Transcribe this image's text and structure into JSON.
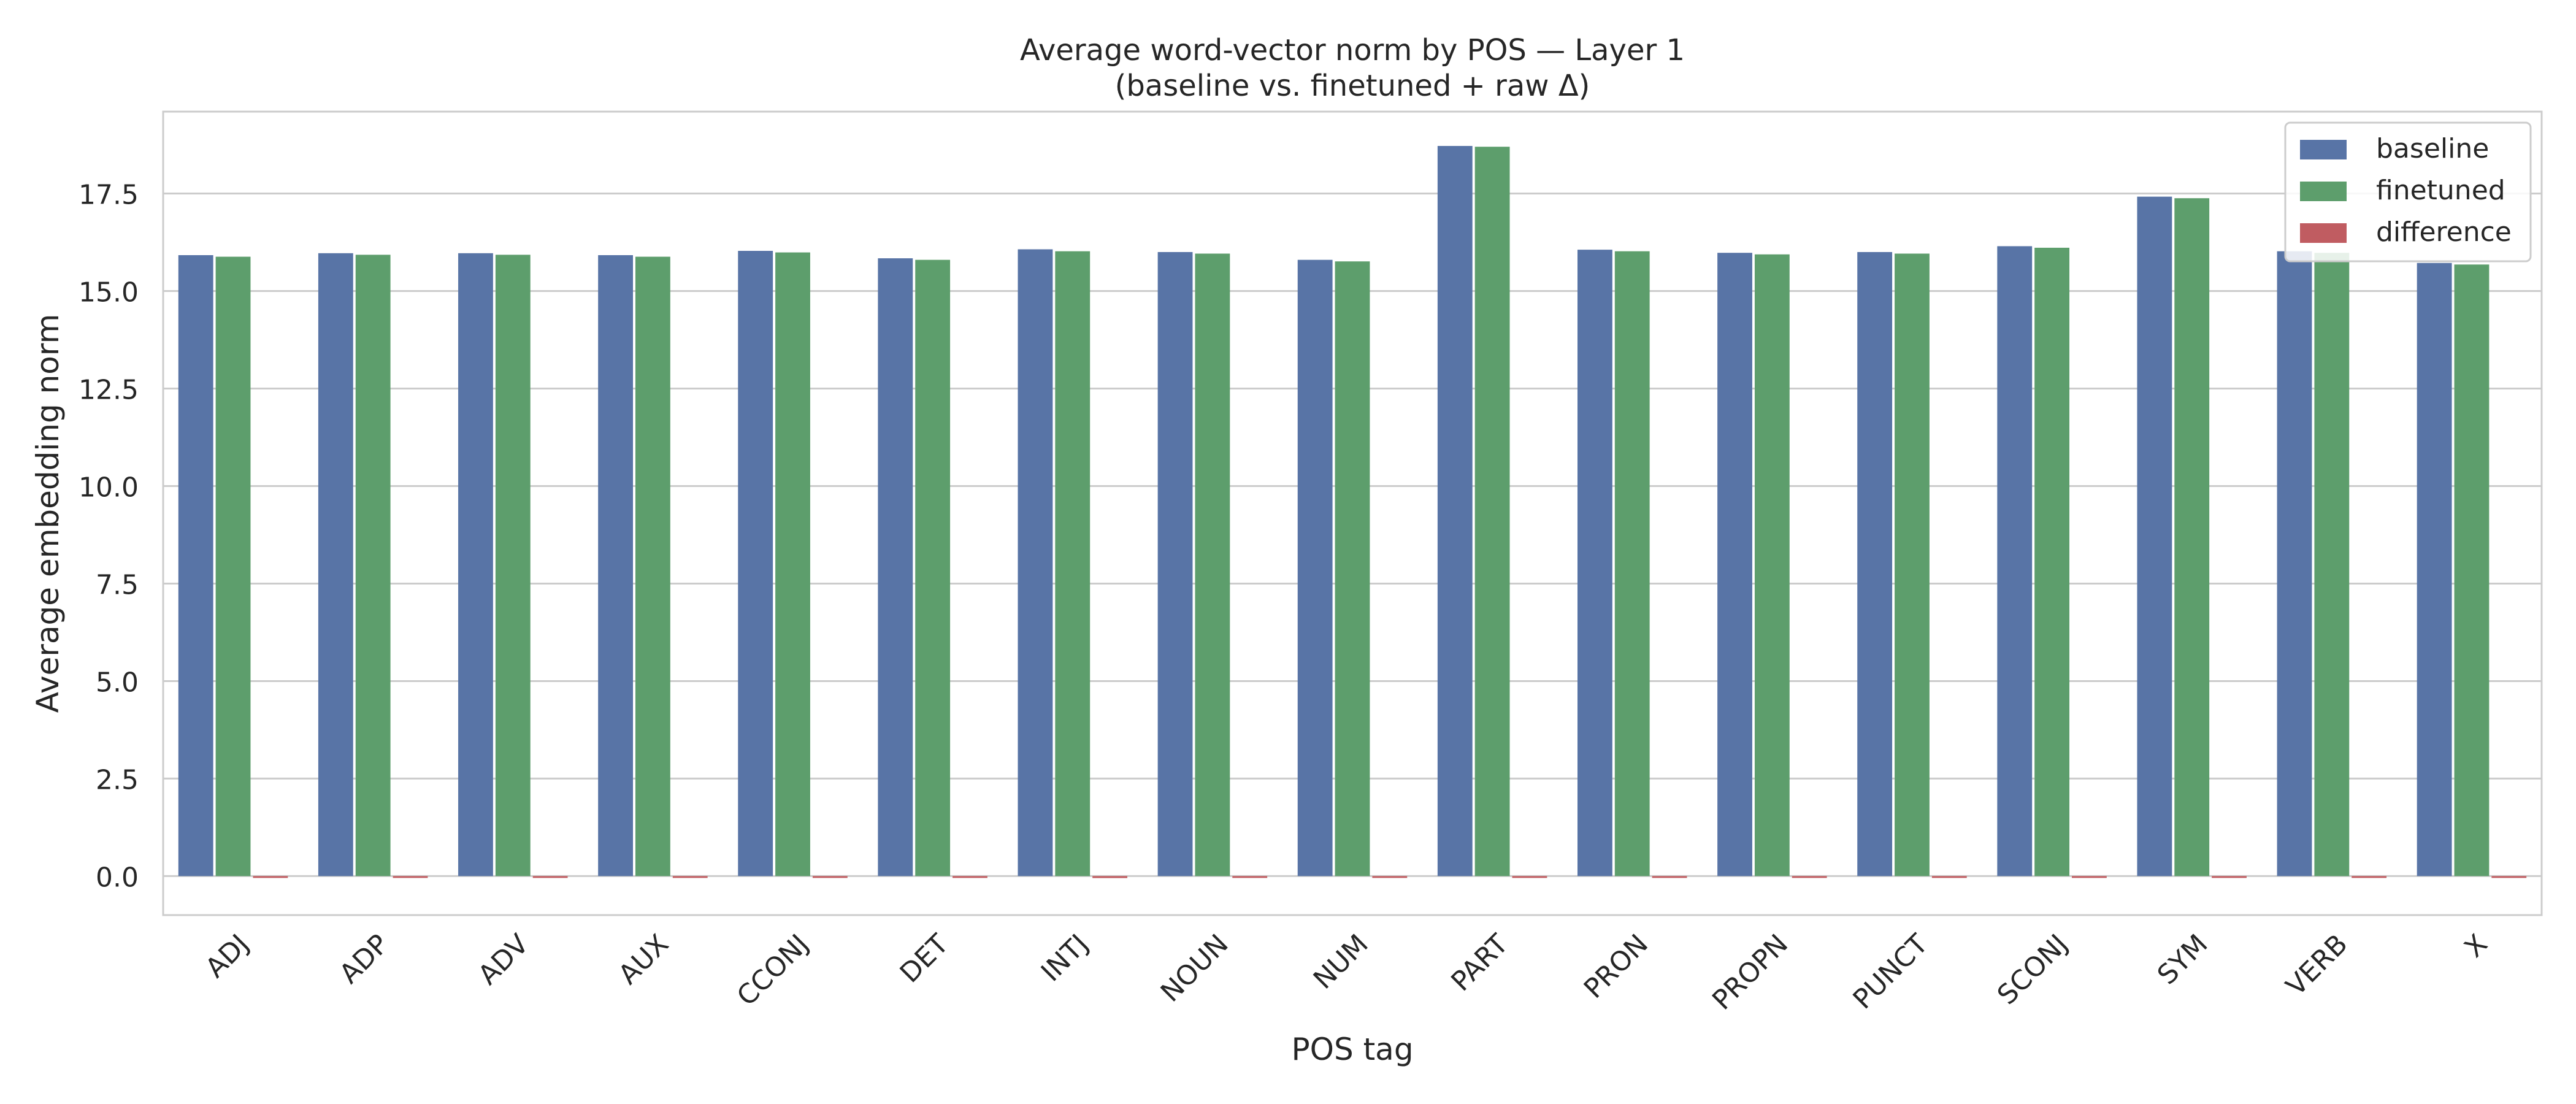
{
  "chart_data": {
    "type": "bar",
    "title": "Average word-vector norm by POS — Layer 1",
    "subtitle": "(baseline vs. finetuned + raw Δ)",
    "xlabel": "POS tag",
    "ylabel": "Average embedding norm",
    "ylim": [
      -1.0,
      19.6
    ],
    "yticks": [
      "0.0",
      "2.5",
      "5.0",
      "7.5",
      "10.0",
      "12.5",
      "15.0",
      "17.5"
    ],
    "grid": true,
    "legend_position": "top-right",
    "categories": [
      "ADJ",
      "ADP",
      "ADV",
      "AUX",
      "CCONJ",
      "DET",
      "INTJ",
      "NOUN",
      "NUM",
      "PART",
      "PRON",
      "PROPN",
      "PUNCT",
      "SCONJ",
      "SYM",
      "VERB",
      "X"
    ],
    "series": [
      {
        "name": "baseline",
        "color": "#5874a6",
        "values": [
          15.92,
          15.97,
          15.97,
          15.92,
          16.03,
          15.84,
          16.07,
          16.0,
          15.8,
          18.72,
          16.06,
          15.98,
          16.0,
          16.15,
          17.42,
          16.02,
          15.72
        ]
      },
      {
        "name": "finetuned",
        "color": "#5d9e6c",
        "values": [
          15.88,
          15.93,
          15.93,
          15.88,
          15.99,
          15.8,
          16.02,
          15.96,
          15.76,
          18.7,
          16.02,
          15.94,
          15.96,
          16.11,
          17.38,
          15.98,
          15.68
        ]
      },
      {
        "name": "difference",
        "color": "#c05c61",
        "values": [
          -0.04,
          -0.04,
          -0.04,
          -0.04,
          -0.04,
          -0.04,
          -0.05,
          -0.04,
          -0.04,
          -0.02,
          -0.04,
          -0.04,
          -0.04,
          -0.04,
          -0.04,
          -0.04,
          -0.04
        ]
      }
    ]
  }
}
